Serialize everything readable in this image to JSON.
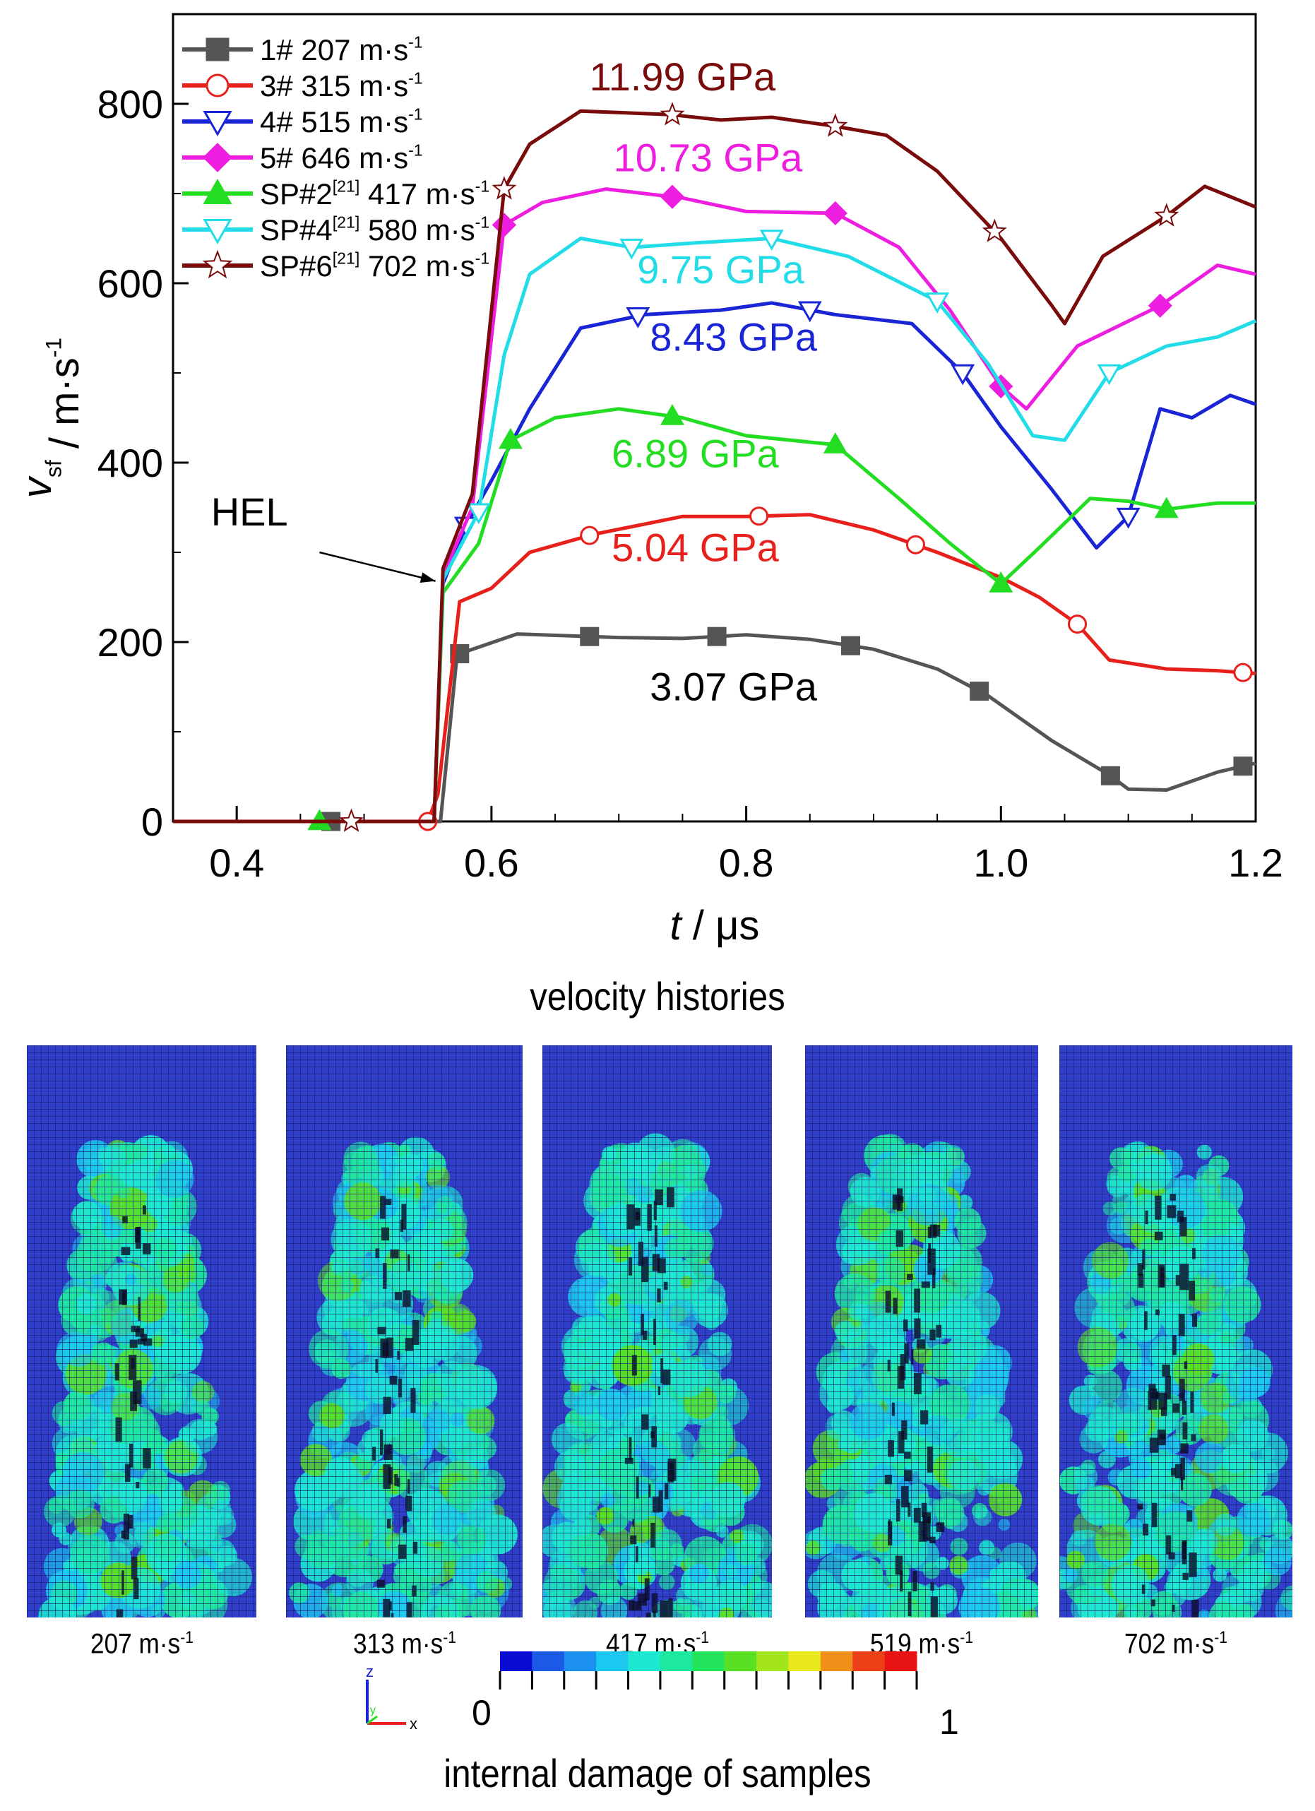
{
  "chart_data": {
    "type": "line",
    "xlabel_var": "t",
    "xlabel_unit": "μs",
    "ylabel_var": "v",
    "ylabel_sub": "sf",
    "ylabel_unit": "m·s",
    "ylabel_sup": "-1",
    "xlim": [
      0.35,
      1.2
    ],
    "ylim": [
      0,
      900
    ],
    "xticks": [
      0.4,
      0.6,
      0.8,
      1.0,
      1.2
    ],
    "xtick_labels": [
      "0.4",
      "0.6",
      "0.8",
      "1.0",
      "1.2"
    ],
    "yticks": [
      0,
      200,
      400,
      600,
      800
    ],
    "ytick_labels": [
      "0",
      "200",
      "400",
      "600",
      "800"
    ],
    "grid": false,
    "legend_position": "top-left",
    "series": [
      {
        "name": "1# 207 m·s-1",
        "legend_main": "1# 207 m·s",
        "legend_sup": "-1",
        "legend_ref": "",
        "color": "#555555",
        "marker": "square",
        "filled": true,
        "x": [
          0.35,
          0.56,
          0.573,
          0.62,
          0.66,
          0.7,
          0.75,
          0.8,
          0.85,
          0.9,
          0.95,
          0.99,
          1.04,
          1.085,
          1.1,
          1.13,
          1.17,
          1.2
        ],
        "y": [
          0,
          0,
          186,
          209,
          207,
          205,
          204,
          208,
          203,
          192,
          170,
          140,
          90,
          52,
          36,
          35,
          55,
          65
        ],
        "mx": [
          0.474,
          0.575,
          0.677,
          0.777,
          0.882,
          0.983,
          1.086,
          1.19
        ]
      },
      {
        "name": "3# 315 m·s-1",
        "legend_main": "3# 315 m·s",
        "legend_sup": "-1",
        "legend_ref": "",
        "color": "#e8201c",
        "marker": "circle",
        "filled": false,
        "x": [
          0.35,
          0.55,
          0.558,
          0.575,
          0.6,
          0.63,
          0.68,
          0.75,
          0.8,
          0.85,
          0.9,
          0.95,
          1.0,
          1.03,
          1.06,
          1.085,
          1.13,
          1.17,
          1.2
        ],
        "y": [
          0,
          0,
          30,
          245,
          260,
          300,
          320,
          340,
          340,
          342,
          325,
          300,
          272,
          250,
          220,
          180,
          170,
          168,
          165
        ],
        "mx": [
          0.55,
          0.677,
          0.81,
          0.933,
          1.06,
          1.19
        ]
      },
      {
        "name": "4# 515 m·s-1",
        "legend_main": "4# 515 m·s",
        "legend_sup": "-1",
        "legend_ref": "",
        "color": "#1a25d6",
        "marker": "tri-down",
        "filled": false,
        "x": [
          0.35,
          0.555,
          0.562,
          0.58,
          0.6,
          0.63,
          0.67,
          0.72,
          0.78,
          0.82,
          0.87,
          0.93,
          0.97,
          1.0,
          1.04,
          1.075,
          1.1,
          1.125,
          1.15,
          1.18,
          1.2
        ],
        "y": [
          0,
          0,
          265,
          330,
          380,
          460,
          550,
          565,
          570,
          578,
          565,
          555,
          500,
          440,
          370,
          305,
          340,
          460,
          450,
          475,
          465
        ],
        "mx": [
          0.58,
          0.715,
          0.85,
          0.97,
          1.1
        ]
      },
      {
        "name": "5# 646 m·s-1",
        "legend_main": "5# 646 m·s",
        "legend_sup": "-1",
        "legend_ref": "",
        "color": "#ee1ee0",
        "marker": "diamond",
        "filled": true,
        "x": [
          0.35,
          0.555,
          0.562,
          0.585,
          0.61,
          0.64,
          0.69,
          0.75,
          0.8,
          0.87,
          0.92,
          0.96,
          1.0,
          1.02,
          1.06,
          1.125,
          1.17,
          1.2
        ],
        "y": [
          0,
          0,
          275,
          350,
          665,
          690,
          705,
          695,
          680,
          678,
          640,
          570,
          485,
          460,
          530,
          575,
          620,
          610
        ],
        "mx": [
          0.61,
          0.742,
          0.87,
          1.0,
          1.125
        ]
      },
      {
        "name": "SP#2[21] 417 m·s-1",
        "legend_main": "SP#2",
        "legend_ref": "[21]",
        "legend_rest": " 417 m·s",
        "legend_sup": "-1",
        "color": "#22dd22",
        "marker": "triangle",
        "filled": true,
        "x": [
          0.35,
          0.555,
          0.562,
          0.59,
          0.615,
          0.65,
          0.7,
          0.75,
          0.8,
          0.87,
          0.92,
          0.96,
          1.0,
          1.03,
          1.07,
          1.1,
          1.13,
          1.17,
          1.2
        ],
        "y": [
          0,
          0,
          255,
          310,
          425,
          450,
          460,
          450,
          430,
          420,
          360,
          310,
          265,
          305,
          360,
          357,
          348,
          355,
          355
        ],
        "mx": [
          0.465,
          0.615,
          0.742,
          0.87,
          1.0,
          1.13
        ]
      },
      {
        "name": "SP#4[21] 580 m·s-1",
        "legend_main": "SP#4",
        "legend_ref": "[21]",
        "legend_rest": " 580 m·s",
        "legend_sup": "-1",
        "color": "#22dde8",
        "marker": "tri-down",
        "filled": false,
        "x": [
          0.35,
          0.555,
          0.562,
          0.59,
          0.61,
          0.63,
          0.67,
          0.71,
          0.76,
          0.82,
          0.88,
          0.95,
          0.99,
          1.025,
          1.05,
          1.085,
          1.13,
          1.17,
          1.2
        ],
        "y": [
          0,
          0,
          270,
          345,
          520,
          610,
          650,
          640,
          645,
          650,
          630,
          580,
          510,
          430,
          425,
          500,
          530,
          540,
          558
        ],
        "mx": [
          0.59,
          0.71,
          0.82,
          0.95,
          1.085
        ]
      },
      {
        "name": "SP#6[21] 702 m·s-1",
        "legend_main": "SP#6",
        "legend_ref": "[21]",
        "legend_rest": " 702 m·s",
        "legend_sup": "-1",
        "color": "#7a0b0b",
        "marker": "star",
        "filled": false,
        "x": [
          0.35,
          0.555,
          0.562,
          0.585,
          0.61,
          0.63,
          0.67,
          0.74,
          0.78,
          0.82,
          0.87,
          0.91,
          0.95,
          1.0,
          1.04,
          1.05,
          1.08,
          1.13,
          1.16,
          1.2
        ],
        "y": [
          0,
          0,
          282,
          365,
          705,
          755,
          792,
          788,
          782,
          785,
          775,
          765,
          725,
          650,
          575,
          555,
          630,
          675,
          708,
          685
        ],
        "mx": [
          0.49,
          0.61,
          0.742,
          0.87,
          0.995,
          1.13
        ]
      }
    ],
    "annotations": [
      {
        "text": "11.99 GPa",
        "color": "#7a0b0b",
        "x": 0.75,
        "y": 815
      },
      {
        "text": "10.73 GPa",
        "color": "#ee1ee0",
        "x": 0.77,
        "y": 725
      },
      {
        "text": "9.75 GPa",
        "color": "#22dde8",
        "x": 0.78,
        "y": 600
      },
      {
        "text": "8.43 GPa",
        "color": "#1a25d6",
        "x": 0.79,
        "y": 525
      },
      {
        "text": "6.89 GPa",
        "color": "#22dd22",
        "x": 0.76,
        "y": 395
      },
      {
        "text": "5.04 GPa",
        "color": "#e8201c",
        "x": 0.76,
        "y": 290
      },
      {
        "text": "3.07 GPa",
        "color": "#000000",
        "x": 0.79,
        "y": 135
      },
      {
        "text": "HEL",
        "color": "#000000",
        "x": 0.41,
        "y": 330
      }
    ],
    "caption": "velocity histories"
  },
  "panels": [
    {
      "label_main": "207 m·s",
      "label_sup": "-1"
    },
    {
      "label_main": "313 m·s",
      "label_sup": "-1"
    },
    {
      "label_main": "417 m·s",
      "label_sup": "-1"
    },
    {
      "label_main": "519 m·s",
      "label_sup": "-1"
    },
    {
      "label_main": "702 m·s",
      "label_sup": "-1"
    }
  ],
  "colorbar": {
    "min_label": "0",
    "max_label": "1",
    "colors": [
      "#0b0bd6",
      "#1a5ae6",
      "#1c90ee",
      "#1cc8f0",
      "#1ce8d0",
      "#1ee8a0",
      "#22e45a",
      "#5ae022",
      "#a4e41c",
      "#e8e81c",
      "#f09018",
      "#ee4018",
      "#e81414"
    ]
  },
  "axis_triad": {
    "z": "z",
    "x": "x",
    "y": "y"
  },
  "damage_caption": "internal damage of samples"
}
